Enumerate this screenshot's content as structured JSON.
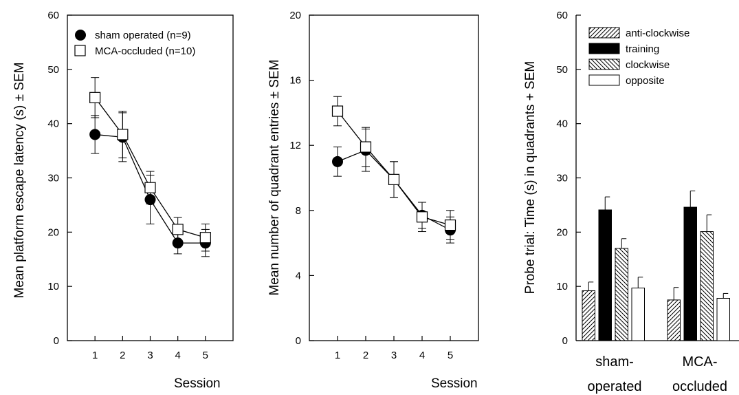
{
  "chart_data": [
    {
      "type": "line",
      "ylabel": "Mean platform escape latency (s) ± SEM",
      "xlabel": "Session",
      "ylim": [
        0,
        60
      ],
      "yticks": [
        "0",
        "10",
        "20",
        "30",
        "40",
        "50",
        "60"
      ],
      "x": [
        "1",
        "2",
        "3",
        "4",
        "5"
      ],
      "legend": "top-left",
      "series": [
        {
          "name": "sham operated (n=9)",
          "marker": "filled-circle",
          "values": [
            38,
            37.5,
            26,
            18,
            18
          ],
          "err": [
            3.5,
            4.5,
            4.5,
            2,
            2.5
          ]
        },
        {
          "name": "MCA-occluded (n=10)",
          "marker": "open-square",
          "values": [
            44.8,
            38,
            28.2,
            20.5,
            19
          ],
          "err": [
            3.7,
            4.3,
            3,
            2.2,
            2.5
          ]
        }
      ]
    },
    {
      "type": "line",
      "ylabel": "Mean number of quadrant entries ± SEM",
      "xlabel": "Session",
      "ylim": [
        0,
        20
      ],
      "yticks": [
        "0",
        "4",
        "8",
        "12",
        "16",
        "20"
      ],
      "x": [
        "1",
        "2",
        "3",
        "4",
        "5"
      ],
      "series": [
        {
          "marker": "filled-circle",
          "values": [
            11,
            11.7,
            9.9,
            7.7,
            6.8
          ],
          "err": [
            0.9,
            1.3,
            1.1,
            0.8,
            0.8
          ]
        },
        {
          "marker": "open-square",
          "values": [
            14.1,
            11.9,
            9.9,
            7.6,
            7.1
          ],
          "err": [
            0.9,
            1.2,
            1.1,
            0.9,
            0.9
          ]
        }
      ]
    },
    {
      "type": "bar",
      "ylabel": "Probe trial: Time (s) in quadrants + SEM",
      "ylim": [
        0,
        60
      ],
      "yticks": [
        "0",
        "10",
        "20",
        "30",
        "40",
        "50",
        "60"
      ],
      "group_labels": [
        [
          "sham-",
          "operated"
        ],
        [
          "MCA-",
          "occluded"
        ]
      ],
      "legend": "top-left",
      "series": [
        {
          "name": "anti-clockwise",
          "fill": "hatch-forward",
          "values": [
            9.2,
            7.5
          ],
          "err": [
            1.6,
            2.3
          ]
        },
        {
          "name": "training",
          "fill": "solid-black",
          "values": [
            24.1,
            24.6
          ],
          "err": [
            2.4,
            3
          ]
        },
        {
          "name": "clockwise",
          "fill": "hatch-back",
          "values": [
            17,
            20.1
          ],
          "err": [
            1.8,
            3.1
          ]
        },
        {
          "name": "opposite",
          "fill": "white",
          "values": [
            9.7,
            7.8
          ],
          "err": [
            2,
            0.9
          ]
        }
      ]
    }
  ],
  "colors": {
    "ink": "#000000",
    "background": "#ffffff"
  }
}
